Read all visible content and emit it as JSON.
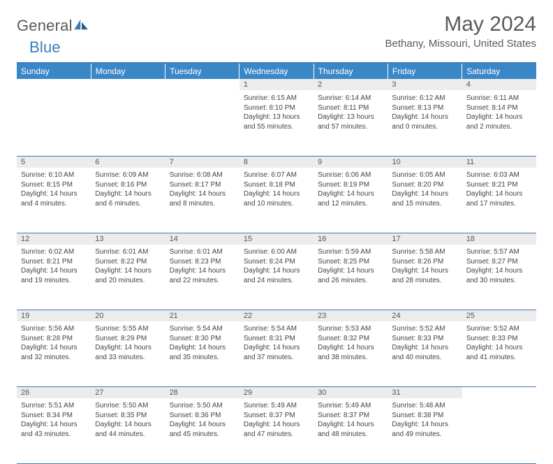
{
  "brand": {
    "general": "General",
    "blue": "Blue"
  },
  "title": "May 2024",
  "location": "Bethany, Missouri, United States",
  "colors": {
    "header_bg": "#3a87c8",
    "header_text": "#ffffff",
    "rule": "#3a7ab8",
    "daynum_bg": "#ececec",
    "body_text": "#444444",
    "title_text": "#5a5a5a"
  },
  "typography": {
    "title_fontsize": 30,
    "location_fontsize": 15,
    "header_fontsize": 12,
    "daynum_fontsize": 11,
    "body_fontsize": 10
  },
  "weekdays": [
    "Sunday",
    "Monday",
    "Tuesday",
    "Wednesday",
    "Thursday",
    "Friday",
    "Saturday"
  ],
  "weeks": [
    [
      null,
      null,
      null,
      {
        "n": "1",
        "sr": "6:15 AM",
        "ss": "8:10 PM",
        "dl": "13 hours and 55 minutes."
      },
      {
        "n": "2",
        "sr": "6:14 AM",
        "ss": "8:11 PM",
        "dl": "13 hours and 57 minutes."
      },
      {
        "n": "3",
        "sr": "6:12 AM",
        "ss": "8:13 PM",
        "dl": "14 hours and 0 minutes."
      },
      {
        "n": "4",
        "sr": "6:11 AM",
        "ss": "8:14 PM",
        "dl": "14 hours and 2 minutes."
      }
    ],
    [
      {
        "n": "5",
        "sr": "6:10 AM",
        "ss": "8:15 PM",
        "dl": "14 hours and 4 minutes."
      },
      {
        "n": "6",
        "sr": "6:09 AM",
        "ss": "8:16 PM",
        "dl": "14 hours and 6 minutes."
      },
      {
        "n": "7",
        "sr": "6:08 AM",
        "ss": "8:17 PM",
        "dl": "14 hours and 8 minutes."
      },
      {
        "n": "8",
        "sr": "6:07 AM",
        "ss": "8:18 PM",
        "dl": "14 hours and 10 minutes."
      },
      {
        "n": "9",
        "sr": "6:06 AM",
        "ss": "8:19 PM",
        "dl": "14 hours and 12 minutes."
      },
      {
        "n": "10",
        "sr": "6:05 AM",
        "ss": "8:20 PM",
        "dl": "14 hours and 15 minutes."
      },
      {
        "n": "11",
        "sr": "6:03 AM",
        "ss": "8:21 PM",
        "dl": "14 hours and 17 minutes."
      }
    ],
    [
      {
        "n": "12",
        "sr": "6:02 AM",
        "ss": "8:21 PM",
        "dl": "14 hours and 19 minutes."
      },
      {
        "n": "13",
        "sr": "6:01 AM",
        "ss": "8:22 PM",
        "dl": "14 hours and 20 minutes."
      },
      {
        "n": "14",
        "sr": "6:01 AM",
        "ss": "8:23 PM",
        "dl": "14 hours and 22 minutes."
      },
      {
        "n": "15",
        "sr": "6:00 AM",
        "ss": "8:24 PM",
        "dl": "14 hours and 24 minutes."
      },
      {
        "n": "16",
        "sr": "5:59 AM",
        "ss": "8:25 PM",
        "dl": "14 hours and 26 minutes."
      },
      {
        "n": "17",
        "sr": "5:58 AM",
        "ss": "8:26 PM",
        "dl": "14 hours and 28 minutes."
      },
      {
        "n": "18",
        "sr": "5:57 AM",
        "ss": "8:27 PM",
        "dl": "14 hours and 30 minutes."
      }
    ],
    [
      {
        "n": "19",
        "sr": "5:56 AM",
        "ss": "8:28 PM",
        "dl": "14 hours and 32 minutes."
      },
      {
        "n": "20",
        "sr": "5:55 AM",
        "ss": "8:29 PM",
        "dl": "14 hours and 33 minutes."
      },
      {
        "n": "21",
        "sr": "5:54 AM",
        "ss": "8:30 PM",
        "dl": "14 hours and 35 minutes."
      },
      {
        "n": "22",
        "sr": "5:54 AM",
        "ss": "8:31 PM",
        "dl": "14 hours and 37 minutes."
      },
      {
        "n": "23",
        "sr": "5:53 AM",
        "ss": "8:32 PM",
        "dl": "14 hours and 38 minutes."
      },
      {
        "n": "24",
        "sr": "5:52 AM",
        "ss": "8:33 PM",
        "dl": "14 hours and 40 minutes."
      },
      {
        "n": "25",
        "sr": "5:52 AM",
        "ss": "8:33 PM",
        "dl": "14 hours and 41 minutes."
      }
    ],
    [
      {
        "n": "26",
        "sr": "5:51 AM",
        "ss": "8:34 PM",
        "dl": "14 hours and 43 minutes."
      },
      {
        "n": "27",
        "sr": "5:50 AM",
        "ss": "8:35 PM",
        "dl": "14 hours and 44 minutes."
      },
      {
        "n": "28",
        "sr": "5:50 AM",
        "ss": "8:36 PM",
        "dl": "14 hours and 45 minutes."
      },
      {
        "n": "29",
        "sr": "5:49 AM",
        "ss": "8:37 PM",
        "dl": "14 hours and 47 minutes."
      },
      {
        "n": "30",
        "sr": "5:49 AM",
        "ss": "8:37 PM",
        "dl": "14 hours and 48 minutes."
      },
      {
        "n": "31",
        "sr": "5:48 AM",
        "ss": "8:38 PM",
        "dl": "14 hours and 49 minutes."
      },
      null
    ]
  ],
  "labels": {
    "sunrise": "Sunrise: ",
    "sunset": "Sunset: ",
    "daylight": "Daylight: "
  }
}
